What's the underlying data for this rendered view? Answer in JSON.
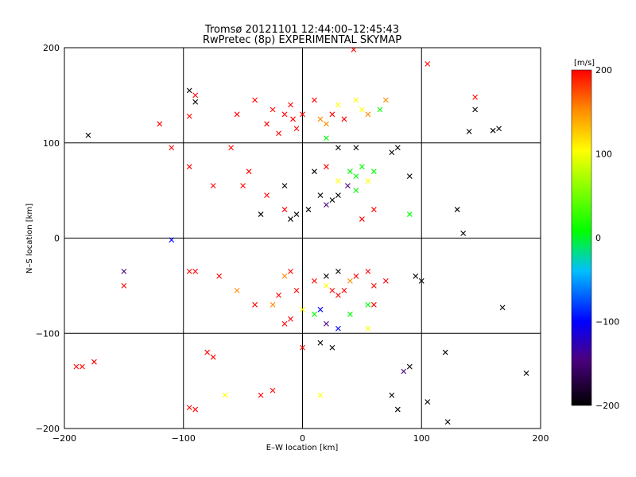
{
  "chart_data": {
    "type": "scatter",
    "title": "Tromsø 20121101 12:44:00–12:45:43",
    "subtitle": "RwPretec (8p) EXPERIMENTAL SKYMAP",
    "xlabel": "E–W location [km]",
    "ylabel": "N–S location [km]",
    "xlim": [
      -200,
      200
    ],
    "ylim": [
      -200,
      200
    ],
    "xticks": [
      "−200",
      "−100",
      "0",
      "100",
      "200"
    ],
    "yticks": [
      "−200",
      "−100",
      "0",
      "100",
      "200"
    ],
    "grid": true,
    "colorbar": {
      "label": "[m/s]",
      "range": [
        -200,
        200
      ],
      "ticks": [
        "200",
        "100",
        "0",
        "−100",
        "−200"
      ],
      "colors": [
        "#000000",
        "#4b0082",
        "#0000ff",
        "#00bfff",
        "#00ff00",
        "#ffff00",
        "#ff8c00",
        "#ff0000"
      ]
    },
    "points": [
      {
        "x": -180,
        "y": 108,
        "v": -200,
        "m": "x"
      },
      {
        "x": -120,
        "y": 120,
        "v": 200,
        "m": "x"
      },
      {
        "x": -110,
        "y": 95,
        "v": 200,
        "m": "x"
      },
      {
        "x": -95,
        "y": 155,
        "v": -200,
        "m": "x"
      },
      {
        "x": -90,
        "y": 150,
        "v": 200,
        "m": "x"
      },
      {
        "x": -95,
        "y": 128,
        "v": 200,
        "m": "x"
      },
      {
        "x": -90,
        "y": 143,
        "v": -200,
        "m": "x"
      },
      {
        "x": -95,
        "y": 75,
        "v": 200,
        "m": "x"
      },
      {
        "x": -75,
        "y": 55,
        "v": 200,
        "m": "x"
      },
      {
        "x": -60,
        "y": 95,
        "v": 200,
        "m": "x"
      },
      {
        "x": -50,
        "y": 55,
        "v": 200,
        "m": "x"
      },
      {
        "x": -45,
        "y": 70,
        "v": 200,
        "m": "x"
      },
      {
        "x": -30,
        "y": 120,
        "v": 200,
        "m": "x"
      },
      {
        "x": -25,
        "y": 135,
        "v": 200,
        "m": "x"
      },
      {
        "x": -20,
        "y": 110,
        "v": 200,
        "m": "x"
      },
      {
        "x": -15,
        "y": 130,
        "v": 200,
        "m": "x"
      },
      {
        "x": -10,
        "y": 140,
        "v": 200,
        "m": "x"
      },
      {
        "x": -8,
        "y": 125,
        "v": 200,
        "m": "x"
      },
      {
        "x": -5,
        "y": 115,
        "v": 200,
        "m": "x"
      },
      {
        "x": 0,
        "y": 130,
        "v": 200,
        "m": "x"
      },
      {
        "x": 10,
        "y": 145,
        "v": 200,
        "m": "x"
      },
      {
        "x": 15,
        "y": 125,
        "v": 150,
        "m": "x"
      },
      {
        "x": 20,
        "y": 120,
        "v": 120,
        "m": "x"
      },
      {
        "x": 25,
        "y": 130,
        "v": 200,
        "m": "x"
      },
      {
        "x": 30,
        "y": 140,
        "v": 90,
        "m": "x"
      },
      {
        "x": 35,
        "y": 125,
        "v": 180,
        "m": "x"
      },
      {
        "x": 45,
        "y": 145,
        "v": 100,
        "m": "x"
      },
      {
        "x": 50,
        "y": 135,
        "v": 60,
        "m": "x"
      },
      {
        "x": 55,
        "y": 130,
        "v": 140,
        "m": "x"
      },
      {
        "x": 65,
        "y": 135,
        "v": 50,
        "m": "x"
      },
      {
        "x": 70,
        "y": 145,
        "v": 120,
        "m": "x"
      },
      {
        "x": 43,
        "y": 198,
        "v": 200,
        "m": "x"
      },
      {
        "x": 105,
        "y": 183,
        "v": 200,
        "m": "x"
      },
      {
        "x": 145,
        "y": 135,
        "v": -200,
        "m": "x"
      },
      {
        "x": 145,
        "y": 148,
        "v": 200,
        "m": "x"
      },
      {
        "x": 140,
        "y": 112,
        "v": -200,
        "m": "x"
      },
      {
        "x": 160,
        "y": 113,
        "v": -200,
        "m": "x"
      },
      {
        "x": 165,
        "y": 115,
        "v": -200,
        "m": "x"
      },
      {
        "x": -40,
        "y": 145,
        "v": 200,
        "m": "x"
      },
      {
        "x": -55,
        "y": 130,
        "v": 200,
        "m": "x"
      },
      {
        "x": 20,
        "y": 105,
        "v": 30,
        "m": "x"
      },
      {
        "x": 30,
        "y": 95,
        "v": -200,
        "m": "x"
      },
      {
        "x": 45,
        "y": 95,
        "v": -200,
        "m": "x"
      },
      {
        "x": 80,
        "y": 95,
        "v": -200,
        "m": "x"
      },
      {
        "x": 75,
        "y": 90,
        "v": -200,
        "m": "x"
      },
      {
        "x": 10,
        "y": 70,
        "v": -200,
        "m": "x"
      },
      {
        "x": 20,
        "y": 75,
        "v": 200,
        "m": "x"
      },
      {
        "x": 30,
        "y": 60,
        "v": 60,
        "m": "x"
      },
      {
        "x": 40,
        "y": 70,
        "v": 30,
        "m": "x"
      },
      {
        "x": 45,
        "y": 65,
        "v": 50,
        "m": "x"
      },
      {
        "x": 50,
        "y": 75,
        "v": 40,
        "m": "x"
      },
      {
        "x": 55,
        "y": 60,
        "v": 70,
        "m": "x"
      },
      {
        "x": 60,
        "y": 70,
        "v": 20,
        "m": "x"
      },
      {
        "x": 45,
        "y": 50,
        "v": 0,
        "m": "x"
      },
      {
        "x": 38,
        "y": 55,
        "v": -120,
        "m": "x"
      },
      {
        "x": 30,
        "y": 45,
        "v": -200,
        "m": "x"
      },
      {
        "x": 25,
        "y": 40,
        "v": -200,
        "m": "x"
      },
      {
        "x": 20,
        "y": 35,
        "v": -160,
        "m": "x"
      },
      {
        "x": 15,
        "y": 45,
        "v": -200,
        "m": "x"
      },
      {
        "x": 5,
        "y": 30,
        "v": -200,
        "m": "x"
      },
      {
        "x": -5,
        "y": 25,
        "v": -200,
        "m": "x"
      },
      {
        "x": -10,
        "y": 20,
        "v": -200,
        "m": "x"
      },
      {
        "x": -15,
        "y": 30,
        "v": 200,
        "m": "x"
      },
      {
        "x": -35,
        "y": 25,
        "v": -200,
        "m": "x"
      },
      {
        "x": -30,
        "y": 45,
        "v": 200,
        "m": "x"
      },
      {
        "x": -15,
        "y": 55,
        "v": -200,
        "m": "x"
      },
      {
        "x": 50,
        "y": 20,
        "v": 200,
        "m": "x"
      },
      {
        "x": 60,
        "y": 30,
        "v": 200,
        "m": "x"
      },
      {
        "x": 90,
        "y": 25,
        "v": 30,
        "m": "x"
      },
      {
        "x": 90,
        "y": 65,
        "v": -200,
        "m": "x"
      },
      {
        "x": 130,
        "y": 30,
        "v": -200,
        "m": "x"
      },
      {
        "x": 135,
        "y": 5,
        "v": -200,
        "m": "x"
      },
      {
        "x": -110,
        "y": -2,
        "v": -100,
        "m": "x"
      },
      {
        "x": -150,
        "y": -35,
        "v": -150,
        "m": "x"
      },
      {
        "x": -150,
        "y": -50,
        "v": 200,
        "m": "x"
      },
      {
        "x": -95,
        "y": -35,
        "v": 200,
        "m": "x"
      },
      {
        "x": -90,
        "y": -35,
        "v": 200,
        "m": "x"
      },
      {
        "x": -70,
        "y": -40,
        "v": 200,
        "m": "x"
      },
      {
        "x": -55,
        "y": -55,
        "v": 150,
        "m": "x"
      },
      {
        "x": -40,
        "y": -70,
        "v": 200,
        "m": "x"
      },
      {
        "x": -25,
        "y": -70,
        "v": 150,
        "m": "x"
      },
      {
        "x": -20,
        "y": -60,
        "v": 200,
        "m": "x"
      },
      {
        "x": -15,
        "y": -40,
        "v": 150,
        "m": "x"
      },
      {
        "x": -10,
        "y": -35,
        "v": 200,
        "m": "x"
      },
      {
        "x": -5,
        "y": -55,
        "v": 200,
        "m": "x"
      },
      {
        "x": 10,
        "y": -45,
        "v": 200,
        "m": "x"
      },
      {
        "x": 20,
        "y": -50,
        "v": 60,
        "m": "x"
      },
      {
        "x": 25,
        "y": -55,
        "v": 200,
        "m": "x"
      },
      {
        "x": 30,
        "y": -60,
        "v": 200,
        "m": "x"
      },
      {
        "x": 35,
        "y": -55,
        "v": 200,
        "m": "x"
      },
      {
        "x": 40,
        "y": -45,
        "v": 150,
        "m": "x"
      },
      {
        "x": 45,
        "y": -40,
        "v": 200,
        "m": "x"
      },
      {
        "x": 55,
        "y": -35,
        "v": 200,
        "m": "x"
      },
      {
        "x": 60,
        "y": -50,
        "v": 200,
        "m": "x"
      },
      {
        "x": 70,
        "y": -45,
        "v": 200,
        "m": "x"
      },
      {
        "x": 30,
        "y": -35,
        "v": -200,
        "m": "x"
      },
      {
        "x": 20,
        "y": -40,
        "v": -200,
        "m": "x"
      },
      {
        "x": 95,
        "y": -40,
        "v": -200,
        "m": "x"
      },
      {
        "x": 100,
        "y": -45,
        "v": -200,
        "m": "x"
      },
      {
        "x": -15,
        "y": -90,
        "v": 200,
        "m": "x"
      },
      {
        "x": -10,
        "y": -85,
        "v": 200,
        "m": "x"
      },
      {
        "x": 0,
        "y": -75,
        "v": 100,
        "m": "x"
      },
      {
        "x": 10,
        "y": -80,
        "v": 30,
        "m": "x"
      },
      {
        "x": 15,
        "y": -75,
        "v": -100,
        "m": "x"
      },
      {
        "x": 20,
        "y": -90,
        "v": -150,
        "m": "x"
      },
      {
        "x": 30,
        "y": -95,
        "v": -100,
        "m": "x"
      },
      {
        "x": 40,
        "y": -80,
        "v": 0,
        "m": "x"
      },
      {
        "x": 55,
        "y": -70,
        "v": 0,
        "m": "x"
      },
      {
        "x": 55,
        "y": -95,
        "v": 100,
        "m": "x"
      },
      {
        "x": 60,
        "y": -70,
        "v": 200,
        "m": "x"
      },
      {
        "x": 15,
        "y": -110,
        "v": -200,
        "m": "x"
      },
      {
        "x": 25,
        "y": -115,
        "v": -200,
        "m": "x"
      },
      {
        "x": 0,
        "y": -115,
        "v": 200,
        "m": "x"
      },
      {
        "x": -80,
        "y": -120,
        "v": 200,
        "m": "x"
      },
      {
        "x": -75,
        "y": -125,
        "v": 200,
        "m": "x"
      },
      {
        "x": -185,
        "y": -135,
        "v": 200,
        "m": "x"
      },
      {
        "x": -190,
        "y": -135,
        "v": 200,
        "m": "x"
      },
      {
        "x": -175,
        "y": -130,
        "v": 200,
        "m": "x"
      },
      {
        "x": -65,
        "y": -165,
        "v": 60,
        "m": "x"
      },
      {
        "x": -35,
        "y": -165,
        "v": 200,
        "m": "x"
      },
      {
        "x": -25,
        "y": -160,
        "v": 200,
        "m": "x"
      },
      {
        "x": -90,
        "y": -180,
        "v": 200,
        "m": "x"
      },
      {
        "x": -95,
        "y": -178,
        "v": 200,
        "m": "x"
      },
      {
        "x": 15,
        "y": -165,
        "v": 100,
        "m": "x"
      },
      {
        "x": 75,
        "y": -165,
        "v": -200,
        "m": "x"
      },
      {
        "x": 80,
        "y": -180,
        "v": -200,
        "m": "x"
      },
      {
        "x": 85,
        "y": -140,
        "v": -160,
        "m": "x"
      },
      {
        "x": 90,
        "y": -135,
        "v": -200,
        "m": "x"
      },
      {
        "x": 120,
        "y": -120,
        "v": -200,
        "m": "x"
      },
      {
        "x": 105,
        "y": -172,
        "v": -200,
        "m": "x"
      },
      {
        "x": 122,
        "y": -193,
        "v": -200,
        "m": "x"
      },
      {
        "x": 168,
        "y": -73,
        "v": -200,
        "m": "x"
      },
      {
        "x": 188,
        "y": -142,
        "v": -200,
        "m": "x"
      }
    ]
  }
}
